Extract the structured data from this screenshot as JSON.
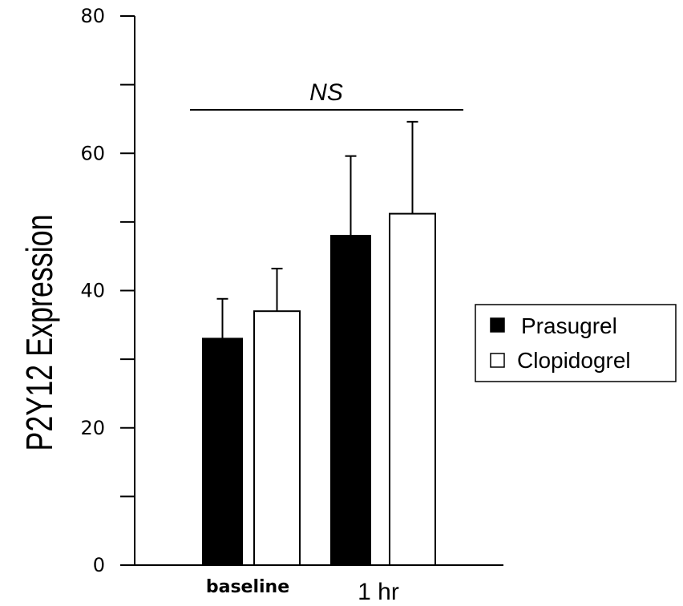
{
  "chart_data": {
    "type": "bar",
    "categories": [
      "baseline",
      "1 hr"
    ],
    "series": [
      {
        "name": "Prasugrel",
        "values": [
          33,
          48
        ],
        "errors": [
          5.8,
          11.6
        ],
        "color": "#000000"
      },
      {
        "name": "Clopidogrel",
        "values": [
          37,
          51.2
        ],
        "errors": [
          6.2,
          13.4
        ],
        "color": "#ffffff"
      }
    ],
    "ylabel": "P2Y12  Expression",
    "xlabel": "",
    "ylim": [
      0,
      80
    ],
    "yticks": [
      0,
      20,
      40,
      60,
      80
    ],
    "annotation": "NS",
    "grid": false,
    "legend_position": "right"
  }
}
